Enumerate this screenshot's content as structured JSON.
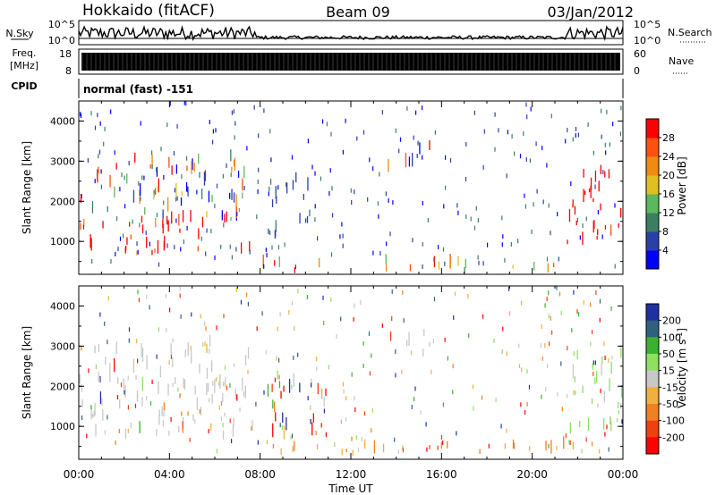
{
  "header": {
    "station": "Hokkaido (fitACF)",
    "beam": "Beam 09",
    "date": "03/Jan/2012"
  },
  "top_panels": {
    "nsky": {
      "label": "N.Sky",
      "tick_top": "10^5",
      "tick_bottom": "10^0",
      "right_label": "N.Search",
      "right_tick_top": "10^5",
      "right_tick_bottom": "10^0"
    },
    "freq": {
      "label_line1": "Freq.",
      "label_line2": "[MHz]",
      "tick_top": "18",
      "tick_bottom": "8",
      "right_label": "Nave",
      "right_tick_top": "60",
      "right_tick_bottom": "0"
    },
    "cpid": {
      "label": "CPID",
      "mode": "normal (fast) -151"
    }
  },
  "chart_data": [
    {
      "type": "heatmap",
      "title": "Power",
      "ylabel": "Slant Range [km]",
      "ylim": [
        180,
        4500
      ],
      "yticks": [
        "1000",
        "2000",
        "3000",
        "4000"
      ],
      "xlim_hours": [
        0,
        24
      ],
      "colorbar": {
        "label": "Power [dB]",
        "ticks": [
          "4",
          "8",
          "12",
          "16",
          "20",
          "24",
          "28"
        ],
        "colors": [
          "#0000ff",
          "#2a3fa8",
          "#3c7e62",
          "#5cb85c",
          "#e0c020",
          "#f08a10",
          "#ff5010",
          "#ff0000"
        ]
      },
      "regions": [
        {
          "t0": 0.0,
          "t1": 7.8,
          "r0": 650,
          "r1": 1500,
          "level": "high"
        },
        {
          "t0": 0.0,
          "t1": 7.5,
          "r0": 1500,
          "r1": 3000,
          "level": "mixed"
        },
        {
          "t0": 21.5,
          "t1": 24.0,
          "r0": 800,
          "r1": 2800,
          "level": "high"
        },
        {
          "t0": 8.3,
          "t1": 10.2,
          "r0": 1000,
          "r1": 2600,
          "level": "low"
        },
        {
          "t0": 13.6,
          "t1": 15.5,
          "r0": 2700,
          "r1": 3300,
          "level": "mixed"
        },
        {
          "t0": 8.0,
          "t1": 21.5,
          "r0": 200,
          "r1": 450,
          "level": "mixed"
        }
      ]
    },
    {
      "type": "heatmap",
      "title": "Velocity",
      "ylabel": "Slant Range [km]",
      "ylim": [
        180,
        4500
      ],
      "yticks": [
        "1000",
        "2000",
        "3000",
        "4000"
      ],
      "xlim_hours": [
        0,
        24
      ],
      "colorbar": {
        "label": "Velocity [m s",
        "label_sup": "-1",
        "label_close": "]",
        "ticks": [
          "200",
          "100",
          "50",
          "15",
          "-15",
          "-50",
          "-100",
          "-200"
        ],
        "colors": [
          "#2030a0",
          "#306080",
          "#3cb030",
          "#90e060",
          "#c8c8c8",
          "#f0b040",
          "#f08020",
          "#f04010",
          "#ff0000"
        ]
      },
      "regions": [
        {
          "t0": 0.0,
          "t1": 7.8,
          "r0": 650,
          "r1": 1800,
          "level": "gray"
        },
        {
          "t0": 0.0,
          "t1": 7.5,
          "r0": 1800,
          "r1": 3000,
          "level": "gray"
        },
        {
          "t0": 21.5,
          "t1": 24.0,
          "r0": 800,
          "r1": 2800,
          "level": "green"
        },
        {
          "t0": 8.3,
          "t1": 11.0,
          "r0": 500,
          "r1": 2200,
          "level": "mixedv"
        },
        {
          "t0": 13.6,
          "t1": 15.5,
          "r0": 2700,
          "r1": 3300,
          "level": "gray"
        },
        {
          "t0": 8.0,
          "t1": 24.0,
          "r0": 200,
          "r1": 450,
          "level": "orange"
        }
      ]
    }
  ],
  "xaxis": {
    "ticks": [
      "00:00",
      "04:00",
      "08:00",
      "12:00",
      "16:00",
      "20:00",
      "00:00"
    ],
    "label": "Time UT"
  }
}
